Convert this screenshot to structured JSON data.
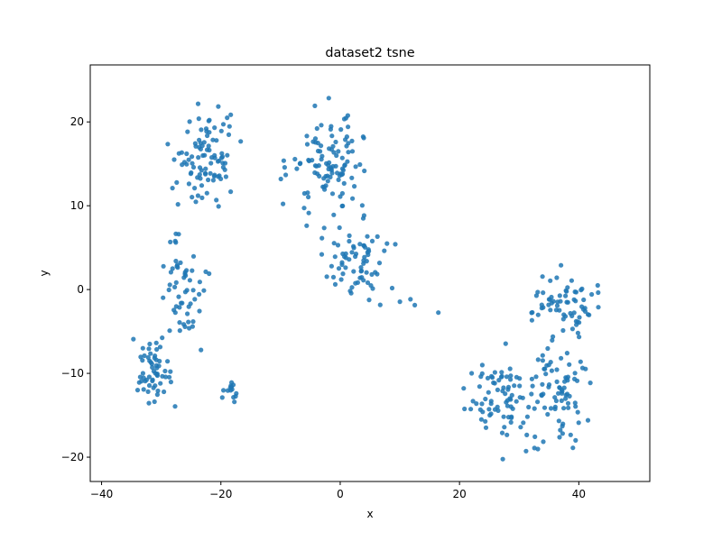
{
  "chart_data": {
    "type": "scatter",
    "title": "dataset2 tsne",
    "xlabel": "x",
    "ylabel": "y",
    "xlim": [
      -41.9,
      51.9
    ],
    "ylim": [
      -22.9,
      26.8
    ],
    "xticks": [
      -40,
      -20,
      0,
      20,
      40
    ],
    "yticks": [
      -20,
      -10,
      0,
      10,
      20
    ],
    "grid": false,
    "point_color": "#1f77b4",
    "clusters": [
      {
        "center": [
          -22,
          15
        ],
        "spread": [
          4.5,
          5.0
        ],
        "count": 95
      },
      {
        "center": [
          -26,
          0
        ],
        "spread": [
          3.5,
          5.0
        ],
        "count": 55
      },
      {
        "center": [
          -31,
          -10
        ],
        "spread": [
          3.0,
          3.5
        ],
        "count": 60
      },
      {
        "center": [
          -18,
          -12
        ],
        "spread": [
          1.0,
          1.2
        ],
        "count": 14
      },
      {
        "center": [
          -2,
          15
        ],
        "spread": [
          6.0,
          5.5
        ],
        "count": 110
      },
      {
        "center": [
          3,
          3
        ],
        "spread": [
          5.0,
          3.5
        ],
        "count": 70
      },
      {
        "center": [
          27,
          -13
        ],
        "spread": [
          4.5,
          4.0
        ],
        "count": 80
      },
      {
        "center": [
          37,
          -12
        ],
        "spread": [
          4.0,
          5.0
        ],
        "count": 80
      },
      {
        "center": [
          38,
          -2
        ],
        "spread": [
          5.0,
          3.0
        ],
        "count": 65
      },
      {
        "center": [
          11,
          -1
        ],
        "spread": [
          2.0,
          1.5
        ],
        "count": 3
      },
      {
        "center": [
          16.5,
          -2.8
        ],
        "spread": [
          0.1,
          0.1
        ],
        "count": 1
      }
    ],
    "seed": 12345
  }
}
